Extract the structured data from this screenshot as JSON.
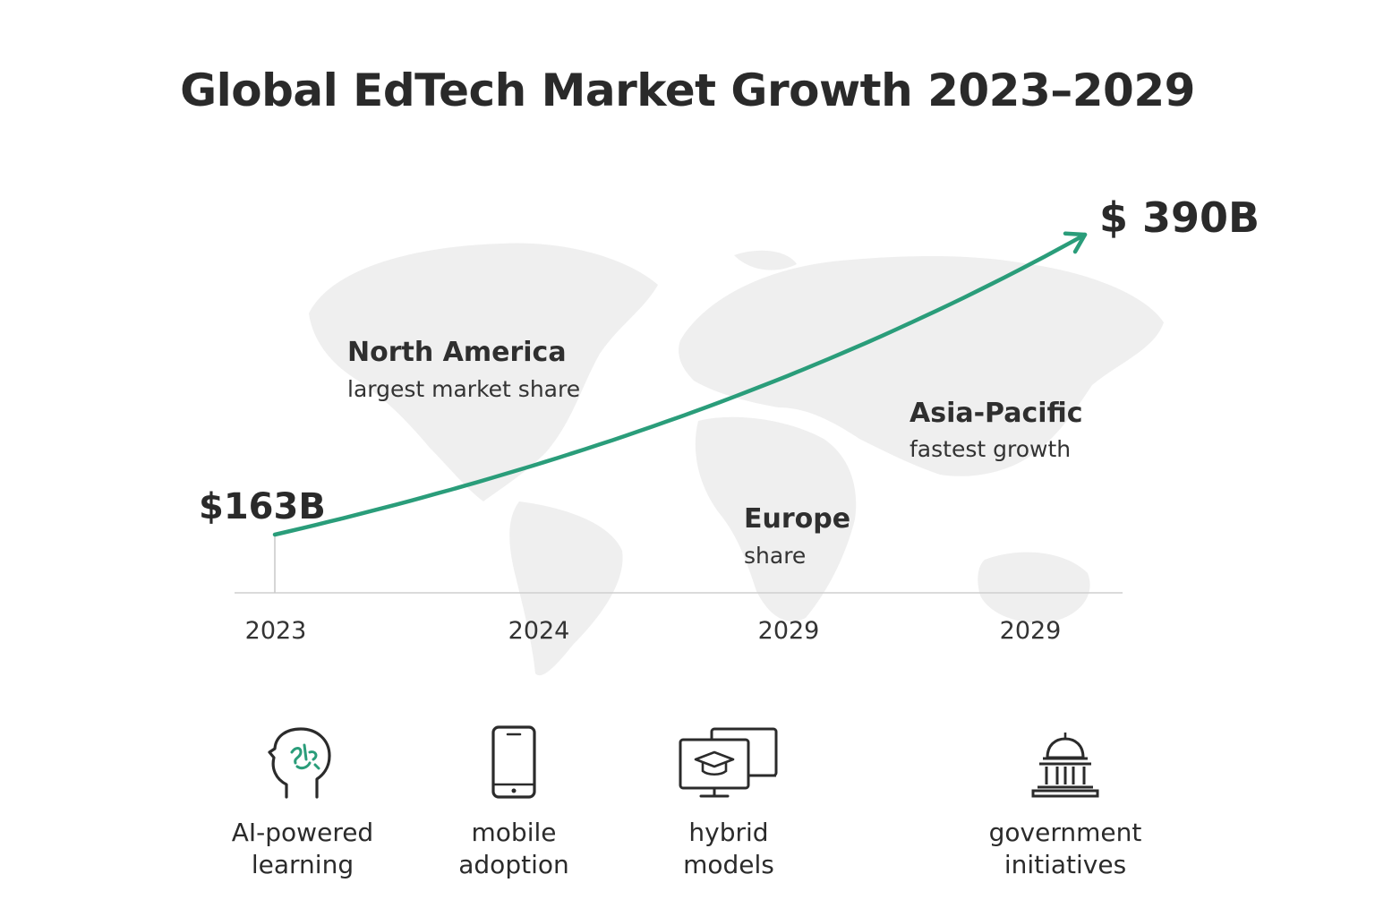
{
  "title": "Global EdTech Market Growth 2023–2029",
  "colors": {
    "curve": "#2a9d7a",
    "axis": "#cfcfcf",
    "map": "#efefef",
    "text": "#2a2a2a"
  },
  "chart_data": {
    "type": "line",
    "title": "Global EdTech Market Growth 2023–2029",
    "x_ticks": [
      "2023",
      "2024",
      "2029",
      "2029"
    ],
    "series": [
      {
        "values": [
          163,
          390
        ]
      }
    ],
    "start_label": "$163B",
    "end_label": "$ 390B",
    "trend": "exponential growth, arrow at end",
    "background": "world map",
    "grid": false
  },
  "regions": [
    {
      "name": "North America",
      "note": "largest market share"
    },
    {
      "name": "Asia-Pacific",
      "note": "fastest growth"
    },
    {
      "name": "Europe",
      "note": "share"
    }
  ],
  "drivers": [
    {
      "label": "AI-powered\nlearning",
      "icon": "ai-head-icon"
    },
    {
      "label": "mobile\nadoption",
      "icon": "smartphone-icon"
    },
    {
      "label": "hybrid\nmodels",
      "icon": "hybrid-screens-icon"
    },
    {
      "label": "government\ninitiatives",
      "icon": "government-building-icon"
    }
  ]
}
